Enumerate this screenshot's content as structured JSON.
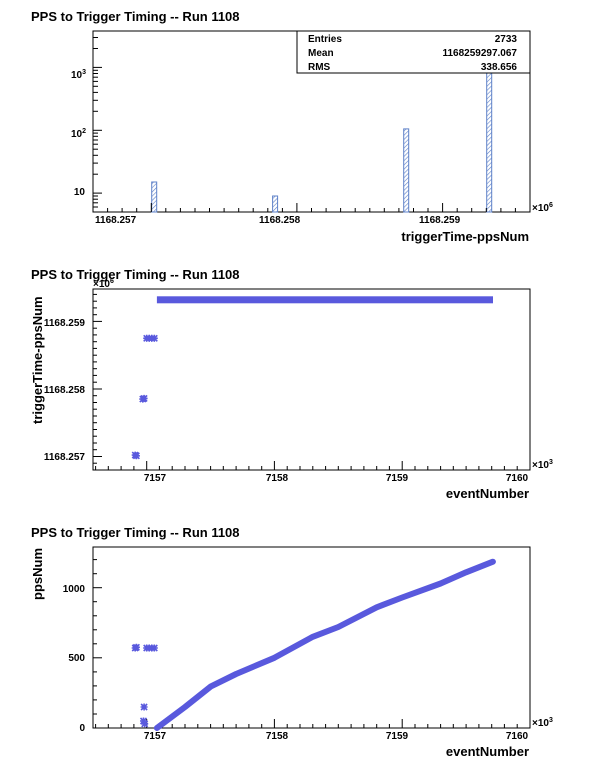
{
  "chart_data": [
    {
      "type": "bar",
      "title": "PPS to Trigger Timing -- Run 1108",
      "xlabel": "triggerTime-ppsNum",
      "ylabel": "",
      "x_multiplier": "×10",
      "x_multiplier_exp": "6",
      "x_ticks": [
        "1168.257",
        "1168.258",
        "1168.259"
      ],
      "xlim": [
        1168.2566,
        1168.2596
      ],
      "y_scale": "log",
      "y_ticks": [
        {
          "base": "10",
          "exp": ""
        },
        {
          "base": "10",
          "exp": "2"
        },
        {
          "base": "10",
          "exp": "3"
        }
      ],
      "ylim": [
        5,
        3800
      ],
      "bars": [
        {
          "x": 1168.25702,
          "value": 15
        },
        {
          "x": 1168.25785,
          "value": 9
        },
        {
          "x": 1168.25875,
          "value": 105
        },
        {
          "x": 1168.25932,
          "value": 2600
        }
      ],
      "stats": {
        "rows": [
          {
            "label": "Entries",
            "value": "2733"
          },
          {
            "label": "Mean",
            "value": "1168259297.067"
          },
          {
            "label": "RMS",
            "value": "338.656"
          }
        ]
      },
      "fill_color": "#5e81c8"
    },
    {
      "type": "scatter",
      "title": "PPS to Trigger Timing -- Run 1108",
      "xlabel": "eventNumber",
      "ylabel": "triggerTime-ppsNum",
      "x_multiplier": "×10",
      "x_multiplier_exp": "3",
      "y_multiplier": "×10",
      "y_multiplier_exp": "6",
      "x_ticks": [
        "7157",
        "7158",
        "7159",
        "7160"
      ],
      "y_ticks": [
        "1168.257",
        "1168.258",
        "1168.259"
      ],
      "xlim": [
        7156.58,
        7160.0
      ],
      "ylim": [
        1168.2568,
        1168.25948
      ],
      "marker_color": "#5959dd",
      "points": [
        {
          "x": 7156.91,
          "y": 1168.25702
        },
        {
          "x": 7156.92,
          "y": 1168.25701
        },
        {
          "x": 7156.97,
          "y": 1168.25785
        },
        {
          "x": 7156.98,
          "y": 1168.25786
        },
        {
          "x": 7157.0,
          "y": 1168.25875
        },
        {
          "x": 7157.02,
          "y": 1168.25875
        },
        {
          "x": 7157.04,
          "y": 1168.25875
        },
        {
          "x": 7157.06,
          "y": 1168.25875
        }
      ],
      "segments": [
        {
          "x_start": 7157.08,
          "x_end": 7159.71,
          "y": 1168.25932
        }
      ]
    },
    {
      "type": "scatter",
      "title": "PPS to Trigger Timing -- Run 1108",
      "xlabel": "eventNumber",
      "ylabel": "ppsNum",
      "x_multiplier": "×10",
      "x_multiplier_exp": "3",
      "x_ticks": [
        "7157",
        "7158",
        "7159",
        "7160"
      ],
      "y_ticks": [
        "0",
        "500",
        "1000"
      ],
      "xlim": [
        7156.58,
        7160.0
      ],
      "ylim": [
        0,
        1290
      ],
      "marker_color": "#5959dd",
      "points": [
        {
          "x": 7156.91,
          "y": 570
        },
        {
          "x": 7156.92,
          "y": 575
        },
        {
          "x": 7156.98,
          "y": 150
        },
        {
          "x": 7156.975,
          "y": 50
        },
        {
          "x": 7156.985,
          "y": 30
        },
        {
          "x": 7157.0,
          "y": 570
        },
        {
          "x": 7157.02,
          "y": 570
        },
        {
          "x": 7157.04,
          "y": 570
        },
        {
          "x": 7157.06,
          "y": 570
        }
      ],
      "curve": [
        {
          "x": 7157.08,
          "y": 0
        },
        {
          "x": 7157.3,
          "y": 150
        },
        {
          "x": 7157.5,
          "y": 295
        },
        {
          "x": 7157.7,
          "y": 385
        },
        {
          "x": 7158.0,
          "y": 500
        },
        {
          "x": 7158.3,
          "y": 650
        },
        {
          "x": 7158.5,
          "y": 720
        },
        {
          "x": 7158.8,
          "y": 860
        },
        {
          "x": 7159.0,
          "y": 930
        },
        {
          "x": 7159.3,
          "y": 1030
        },
        {
          "x": 7159.5,
          "y": 1110
        },
        {
          "x": 7159.71,
          "y": 1185
        }
      ]
    }
  ]
}
